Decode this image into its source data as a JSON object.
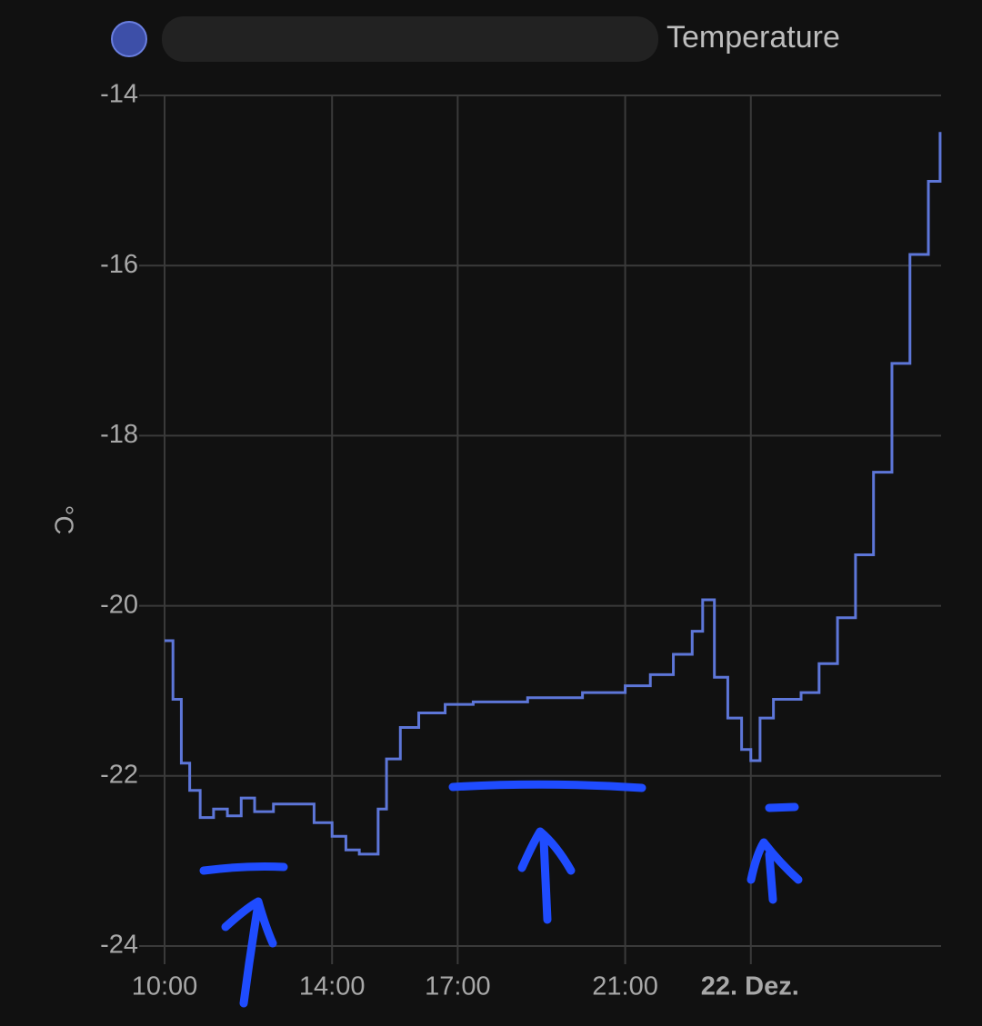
{
  "chart_data": {
    "type": "line",
    "step": true,
    "y_label": "°C",
    "series": [
      {
        "name": "Temperature",
        "color": "#5d76d8",
        "x": [
          10.0,
          10.2,
          10.4,
          10.6,
          10.85,
          11.17,
          11.5,
          11.83,
          12.15,
          12.6,
          13.0,
          13.57,
          14.0,
          14.33,
          14.65,
          15.0,
          15.1,
          15.3,
          15.63,
          16.07,
          16.7,
          17.37,
          18.67,
          19.98,
          21.0,
          21.6,
          22.15,
          22.6,
          22.85,
          23.13,
          23.45,
          23.78,
          24.0,
          24.22,
          24.54,
          25.2,
          25.63,
          26.07,
          26.5,
          26.93,
          27.37,
          27.8,
          28.24,
          28.52
        ],
        "values": [
          -20.41,
          -21.1,
          -21.85,
          -22.17,
          -22.49,
          -22.39,
          -22.47,
          -22.26,
          -22.42,
          -22.33,
          -22.33,
          -22.55,
          -22.71,
          -22.87,
          -22.92,
          -22.92,
          -22.39,
          -21.8,
          -21.43,
          -21.26,
          -21.16,
          -21.13,
          -21.08,
          -21.02,
          -20.94,
          -20.81,
          -20.57,
          -20.3,
          -19.93,
          -20.84,
          -21.32,
          -21.69,
          -21.82,
          -21.32,
          -21.1,
          -21.02,
          -20.68,
          -20.14,
          -19.4,
          -18.43,
          -17.15,
          -15.87,
          -15.01,
          -14.43
        ]
      }
    ],
    "xlim": [
      10,
      28.5
    ],
    "xticks": [
      {
        "value": 10,
        "label": "10:00"
      },
      {
        "value": 14,
        "label": "14:00"
      },
      {
        "value": 17,
        "label": "17:00"
      },
      {
        "value": 21,
        "label": "21:00"
      },
      {
        "value": 24,
        "label": "22. Dez."
      }
    ],
    "ylim": [
      -24,
      -14
    ],
    "yticks": [
      -24,
      -22,
      -20,
      -18,
      -16,
      -14
    ],
    "grid": true
  }
}
